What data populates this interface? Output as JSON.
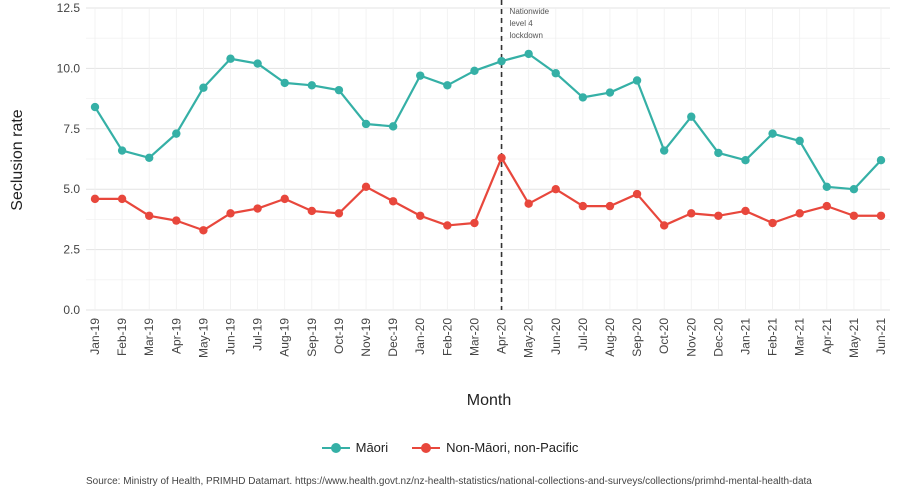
{
  "chart_data": {
    "type": "line",
    "xlabel": "Month",
    "ylabel": "Seclusion rate",
    "ylim": [
      0,
      12.5
    ],
    "yticks": [
      "0.0",
      "2.5",
      "5.0",
      "7.5",
      "10.0",
      "12.5"
    ],
    "grid": true,
    "legend_position": "bottom",
    "categories": [
      "Jan-19",
      "Feb-19",
      "Mar-19",
      "Apr-19",
      "May-19",
      "Jun-19",
      "Jul-19",
      "Aug-19",
      "Sep-19",
      "Oct-19",
      "Nov-19",
      "Dec-19",
      "Jan-20",
      "Feb-20",
      "Mar-20",
      "Apr-20",
      "May-20",
      "Jun-20",
      "Jul-20",
      "Aug-20",
      "Sep-20",
      "Oct-20",
      "Nov-20",
      "Dec-20",
      "Jan-21",
      "Feb-21",
      "Mar-21",
      "Apr-21",
      "May-21",
      "Jun-21"
    ],
    "series": [
      {
        "name": "Māori",
        "color": "#35b0a6",
        "values": [
          8.4,
          6.6,
          6.3,
          7.3,
          9.2,
          10.4,
          10.2,
          9.4,
          9.3,
          9.1,
          7.7,
          7.6,
          9.7,
          9.3,
          9.9,
          10.3,
          10.6,
          9.8,
          8.8,
          9.0,
          9.5,
          6.6,
          8.0,
          6.5,
          6.2,
          7.3,
          7.0,
          5.1,
          5.0,
          6.2
        ]
      },
      {
        "name": "Non-Māori, non-Pacific",
        "color": "#e8473c",
        "values": [
          4.6,
          4.6,
          3.9,
          3.7,
          3.3,
          4.0,
          4.2,
          4.6,
          4.1,
          4.0,
          5.1,
          4.5,
          3.9,
          3.5,
          3.6,
          6.3,
          4.4,
          5.0,
          4.3,
          4.3,
          4.8,
          3.5,
          4.0,
          3.9,
          4.1,
          3.6,
          4.0,
          4.3,
          3.9,
          3.9
        ]
      }
    ],
    "annotation": {
      "text": [
        "Nationwide",
        "level 4",
        "lockdown"
      ],
      "at": "Apr-20"
    }
  },
  "source": "Source: Ministry of Health, PRIMHD Datamart. https://www.health.govt.nz/nz-health-statistics/national-collections-and-surveys/collections/primhd-mental-health-data"
}
